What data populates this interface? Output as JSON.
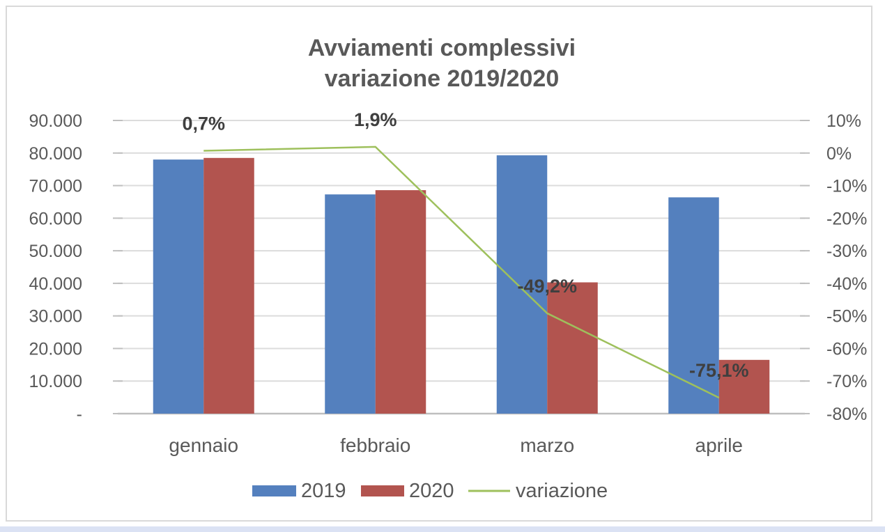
{
  "title": {
    "line1": "Avviamenti complessivi",
    "line2": "variazione 2019/2020"
  },
  "chart_data": {
    "type": "combo-bar-line",
    "title": "Avviamenti complessivi variazione 2019/2020",
    "categories": [
      "gennaio",
      "febbraio",
      "marzo",
      "aprile"
    ],
    "bar_series": [
      {
        "name": "2019",
        "color": "#5480BE",
        "values": [
          78000,
          67300,
          79300,
          66400
        ]
      },
      {
        "name": "2020",
        "color": "#B2544F",
        "values": [
          78500,
          68600,
          40300,
          16500
        ]
      }
    ],
    "line_series": {
      "name": "variazione",
      "color": "#9EC05C",
      "values_percent": [
        0.7,
        1.9,
        -49.2,
        -75.1
      ],
      "point_labels": [
        "0,7%",
        "1,9%",
        "-49,2%",
        "-75,1%"
      ]
    },
    "left_axis": {
      "tick_labels": [
        "90.000",
        "80.000",
        "70.000",
        "60.000",
        "50.000",
        "40.000",
        "30.000",
        "20.000",
        "10.000",
        "-"
      ],
      "min": 0,
      "max": 90000
    },
    "right_axis": {
      "tick_labels": [
        "10%",
        "0%",
        "-10%",
        "-20%",
        "-30%",
        "-40%",
        "-50%",
        "-60%",
        "-70%",
        "-80%"
      ],
      "min": -80,
      "max": 10
    },
    "legend": {
      "position": "bottom",
      "entries": [
        "2019",
        "2020",
        "variazione"
      ]
    },
    "grid": "horizontal"
  },
  "colors": {
    "title_text": "#595959",
    "axis_text": "#595959",
    "data_label_text": "#3f3f3f",
    "gridline": "#dcdcdc",
    "axis_line": "#bfbfbf",
    "frame_border": "#d9d9d9",
    "background": "#ffffff",
    "bottom_strip": "#dbe2f4"
  }
}
